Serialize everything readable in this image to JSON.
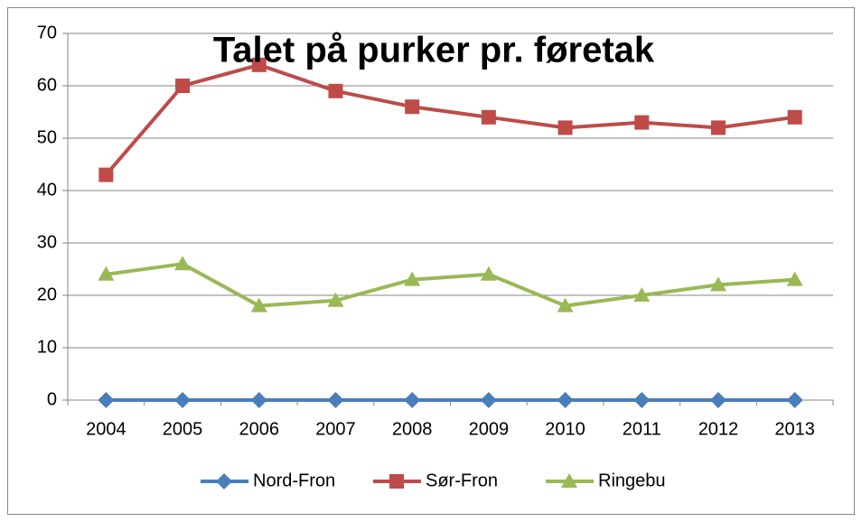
{
  "chart_data": {
    "type": "line",
    "title": "Talet på purker pr. føretak",
    "categories": [
      "2004",
      "2005",
      "2006",
      "2007",
      "2008",
      "2009",
      "2010",
      "2011",
      "2012",
      "2013"
    ],
    "series": [
      {
        "name": "Nord-Fron",
        "color": "#4a7ebb",
        "marker": "diamond",
        "values": [
          0,
          0,
          0,
          0,
          0,
          0,
          0,
          0,
          0,
          0
        ]
      },
      {
        "name": "Sør-Fron",
        "color": "#be4b48",
        "marker": "square",
        "values": [
          43,
          60,
          64,
          59,
          56,
          54,
          52,
          53,
          52,
          54
        ]
      },
      {
        "name": "Ringebu",
        "color": "#98b954",
        "marker": "triangle",
        "values": [
          24,
          26,
          18,
          19,
          23,
          24,
          18,
          20,
          22,
          23
        ]
      }
    ],
    "ylim": [
      0,
      70
    ],
    "yticks": [
      0,
      10,
      20,
      30,
      40,
      50,
      60,
      70
    ],
    "grid": true,
    "legend": "bottom"
  }
}
